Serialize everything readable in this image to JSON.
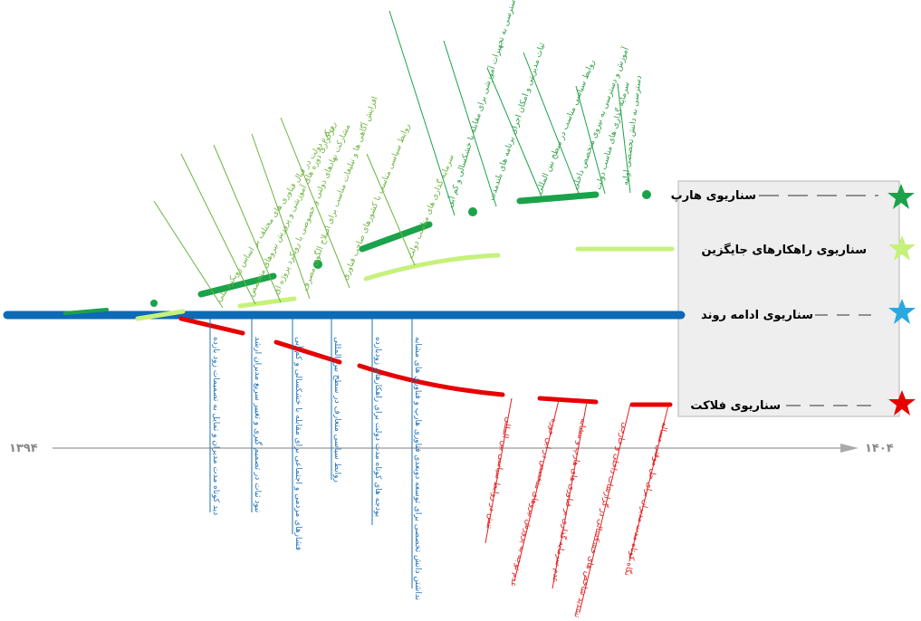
{
  "scenarios": {
    "harp": "سناریوی هارپ",
    "jaygozin": "سناریوی راهکارهای جایگزین",
    "edame": "سناریوی ادامه روند",
    "falakat": "سناریوی فلاکت"
  },
  "years": {
    "start": "۱۳۹۴",
    "end": "۱۴۰۴"
  },
  "factors": {
    "g1": "دسترسی به دانش تخصصی اولیه",
    "g2": "سرمایه گذاری های مناسب دولت",
    "g3": "آموزش و دسترسی به نیروی متخصص داخلی",
    "g4": "روابط سیاسی مناسب در سطح بین المللی",
    "g5": "ثبات مدیریتی و امکان اجرای برنامه های بلندمدت",
    "g6": "همکاری های مناسب بین المللی و دسترسی به تجهیزات آموزشی برای مقابله با خشکسالی و کم آبی",
    "l1": "سرمایه گذاری های مناسب دولت",
    "l2": "روابط سیاسی مناسب با کشورهای صاحب فناوری",
    "l3": "افزایش آگاهی ها و تبلیغات مناسب برای اصلاح الگوی مصرف",
    "l4": "مشارکت نهادهای دولتی و خصوصی با رویکرد پروژه ای",
    "l5": "برگزاری دوره های آموزشی و پرورش نیروهای متخصص",
    "l6": "رویکرد دولت در قبال فناوری های مختلف بر اساس رویکرد ملی",
    "b1": "دید کوتاه مدت مدیران و تمایل به تصمیمات زود بازده",
    "b2": "نبود ثبات در تصمیم گیری و تغییر سریع مدیران ارشد",
    "b3": "فشارهای مردمی و اجتماعی برای مقابله با خشکسالی و کم آبی",
    "b4": "روابط سیاسی متعارف در سطح بین المللی",
    "b5": "بودجه های کوتاه مدت دولت برای راهکارهای زودبازده",
    "b6": "نداشتن دانش تخصصی برای توسعه دوبعدی فناوری هارپ و فناوری های مشابه",
    "r1": "تنش در روابط سیاسی بین المللی",
    "r2": "عدم توجه به پرورش نیروهای متخصص در این حوزه",
    "r3": "عدم سرمایه گذاری بر فناوری های هارپ و مشابه",
    "r4": "تشدید شاخص های خشکسالی در گزارشات داخلی و خارجی",
    "r5": "نگاه کوتاه مدت مدیران برای حل موقتی مساله"
  },
  "colors": {
    "harp": "#1aa34a",
    "jaygozin": "#c6f17a",
    "edame": "#0d6ab5",
    "falakat": "#e80000",
    "timeline": "#aaaaaa",
    "panel": "#eeeeee"
  },
  "icons": [
    "star-icon",
    "arrow-right-icon"
  ]
}
